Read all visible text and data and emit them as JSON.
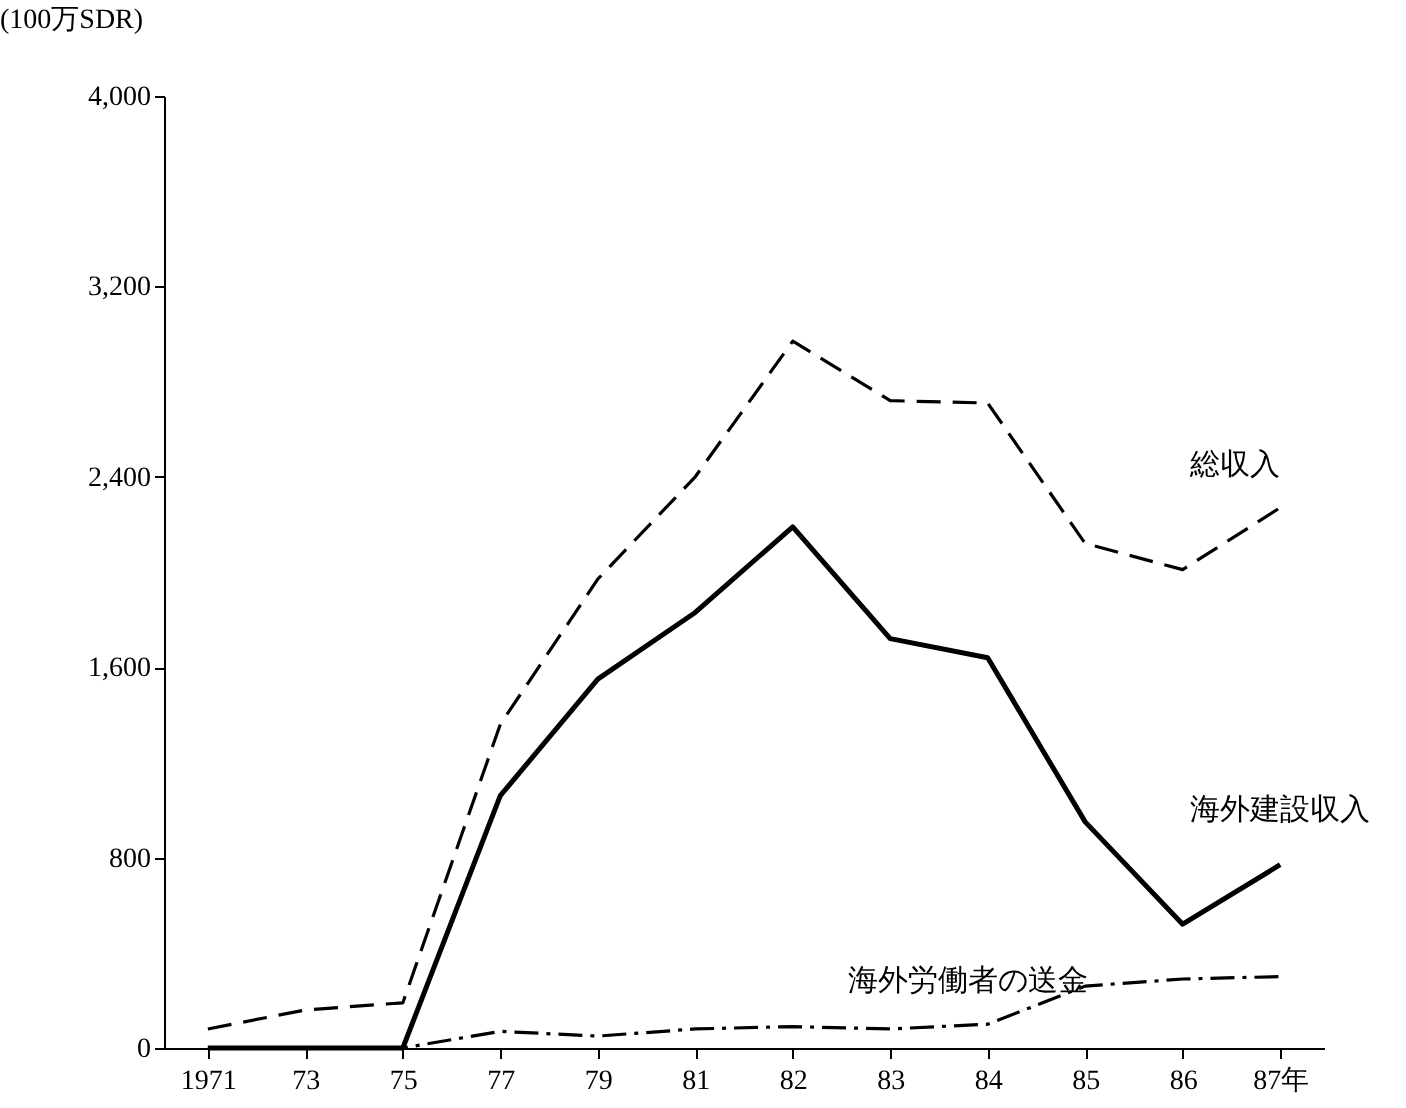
{
  "chart_data": {
    "type": "line",
    "ylabel": "(100万SDR)",
    "categories": [
      "1971",
      "73",
      "75",
      "77",
      "79",
      "81",
      "82",
      "83",
      "84",
      "85",
      "86",
      "87年"
    ],
    "ylim": [
      0,
      4000
    ],
    "yticks": [
      0,
      {
        "value": 800,
        "label": "800"
      },
      {
        "value": 1600,
        "label": "1,600"
      },
      {
        "value": 2400,
        "label": "2,400"
      },
      {
        "value": 3200,
        "label": "3,200"
      },
      {
        "value": 4000,
        "label": "4,000"
      }
    ],
    "grid": false,
    "legend": false,
    "marker": "none",
    "series": [
      {
        "name": "総収入",
        "color": "#000000",
        "line_style": "dashed",
        "values": [
          80,
          160,
          190,
          1360,
          1970,
          2400,
          2970,
          2720,
          2710,
          2120,
          2010,
          2270
        ]
      },
      {
        "name": "海外建設収入",
        "color": "#000000",
        "line_style": "solid",
        "values": [
          0,
          0,
          0,
          1060,
          1550,
          1830,
          2190,
          1720,
          1640,
          950,
          520,
          770
        ]
      },
      {
        "name": "海外労働者の送金",
        "color": "#000000",
        "line_style": "dashdot",
        "values": [
          0,
          0,
          0,
          70,
          50,
          80,
          90,
          80,
          100,
          260,
          290,
          300
        ]
      }
    ]
  }
}
